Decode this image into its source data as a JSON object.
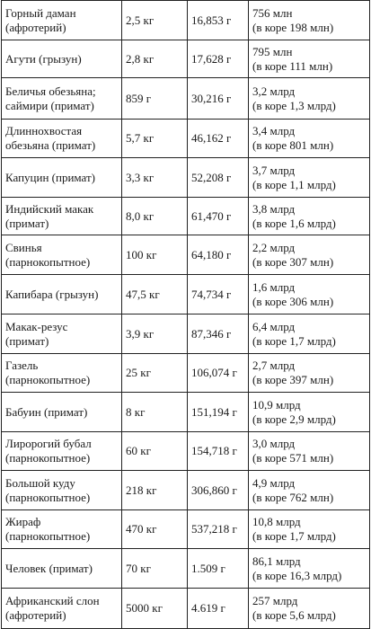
{
  "rows": [
    {
      "name": "Горный даман\n(афротерий)",
      "mass": "2,5 кг",
      "brain": "16,853 г",
      "neurons": "756 млн\n(в коре 198 млн)"
    },
    {
      "name": "Агути (грызун)",
      "mass": "2,8 кг",
      "brain": "17,628 г",
      "neurons": "795 млн\n(в коре 111 млн)"
    },
    {
      "name": "Беличья обезьяна;\nсаймири (примат)",
      "mass": "859 г",
      "brain": "30,216 г",
      "neurons": "3,2 млрд\n(в коре 1,3 млрд)"
    },
    {
      "name": "Длиннохвостая\nобезьяна (примат)",
      "mass": "5,7 кг",
      "brain": "46,162 г",
      "neurons": "3,4 млрд\n(в коре 801 млн)"
    },
    {
      "name": "Капуцин (примат)",
      "mass": "3,3 кг",
      "brain": "52,208 г",
      "neurons": "3,7 млрд\n(в коре 1,1 млрд)"
    },
    {
      "name": "Индийский макак\n(примат)",
      "mass": "8,0 кг",
      "brain": "61,470 г",
      "neurons": "3,8 млрд\n(в коре 1,6 млрд)"
    },
    {
      "name": "Свинья\n(парнокопытное)",
      "mass": "100 кг",
      "brain": "64,180 г",
      "neurons": "2,2 млрд\n(в коре 307 млн)"
    },
    {
      "name": "Капибара (грызун)",
      "mass": "47,5 кг",
      "brain": "74,734 г",
      "neurons": "1,6 млрд\n(в коре 306 млн)"
    },
    {
      "name": "Макак-резус\n(примат)",
      "mass": "3,9 кг",
      "brain": "87,346 г",
      "neurons": "6,4 млрд\n(в коре 1,7 млрд)"
    },
    {
      "name": "Газель\n(парнокопытное)",
      "mass": "25 кг",
      "brain": "106,074 г",
      "neurons": "2,7 млрд\n(в коре 397 млн)"
    },
    {
      "name": "Бабуин (примат)",
      "mass": "8 кг",
      "brain": "151,194 г",
      "neurons": "10,9 млрд\n(в коре 2,9 млрд)"
    },
    {
      "name": "Лиророгий бубал\n(парнокопытное)",
      "mass": "60 кг",
      "brain": "154,718 г",
      "neurons": "3,0 млрд\n(в коре 571 млн)"
    },
    {
      "name": "Большой куду\n(парнокопытное)",
      "mass": "218 кг",
      "brain": "306,860 г",
      "neurons": "4,9 млрд\n(в коре 762 млн)"
    },
    {
      "name": "Жираф\n(парнокопытное)",
      "mass": "470 кг",
      "brain": "537,218 г",
      "neurons": "10,8 млрд\n(в коре 1,7 млрд)"
    },
    {
      "name": "Человек (примат)",
      "mass": "70 кг",
      "brain": "1.509 г",
      "neurons": "86,1 млрд\n(в коре 16,3 млрд)"
    },
    {
      "name": "Африканский слон\n(афротерий)",
      "mass": "5000 кг",
      "brain": "4.619 г",
      "neurons": "257 млрд\n(в коре 5,6 млрд)"
    }
  ]
}
